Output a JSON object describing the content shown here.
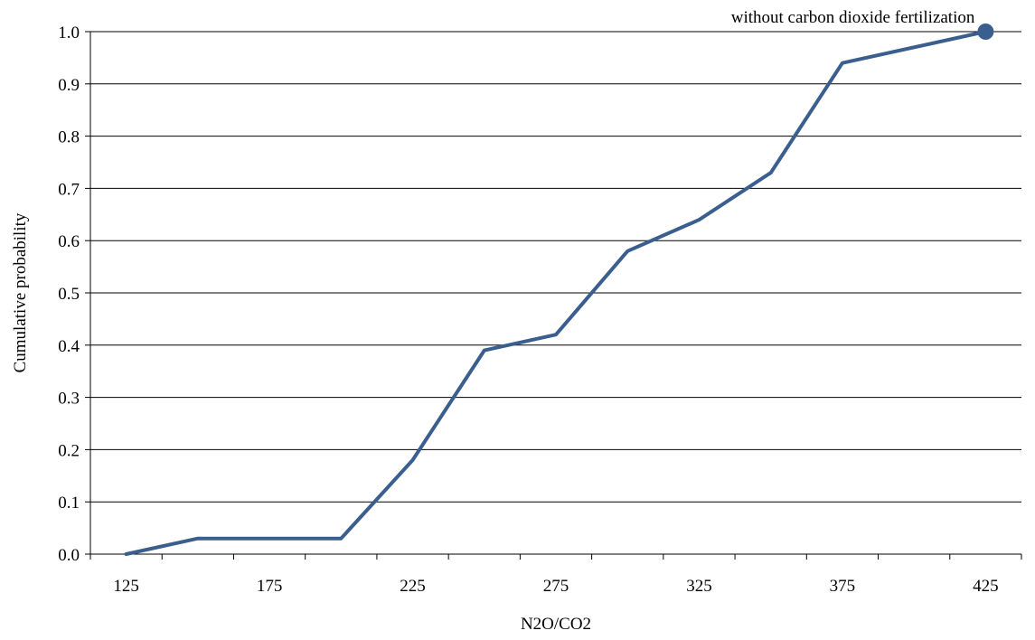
{
  "chart_data": {
    "type": "line",
    "title": "",
    "xlabel": "N2O/CO2",
    "ylabel": "Cumulative probability",
    "x_tick_labels": [
      "125",
      "175",
      "225",
      "275",
      "325",
      "375",
      "425"
    ],
    "y_tick_labels": [
      "0.0",
      "0.1",
      "0.2",
      "0.3",
      "0.4",
      "0.5",
      "0.6",
      "0.7",
      "0.8",
      "0.9",
      "1.0"
    ],
    "xlim": [
      112.5,
      437.5
    ],
    "ylim": [
      0,
      1
    ],
    "grid": "horizontal",
    "legend": "none",
    "series": [
      {
        "color": "#3A5F8F",
        "points": [
          {
            "x": 125,
            "y": 0.0
          },
          {
            "x": 150,
            "y": 0.03
          },
          {
            "x": 175,
            "y": 0.03
          },
          {
            "x": 200,
            "y": 0.03
          },
          {
            "x": 225,
            "y": 0.18
          },
          {
            "x": 250,
            "y": 0.39
          },
          {
            "x": 275,
            "y": 0.42
          },
          {
            "x": 300,
            "y": 0.58
          },
          {
            "x": 325,
            "y": 0.64
          },
          {
            "x": 350,
            "y": 0.73
          },
          {
            "x": 375,
            "y": 0.94
          },
          {
            "x": 425,
            "y": 1.0
          }
        ]
      }
    ],
    "annotation": {
      "text": "without carbon dioxide fertilization",
      "x": 425,
      "y": 1.0
    }
  }
}
